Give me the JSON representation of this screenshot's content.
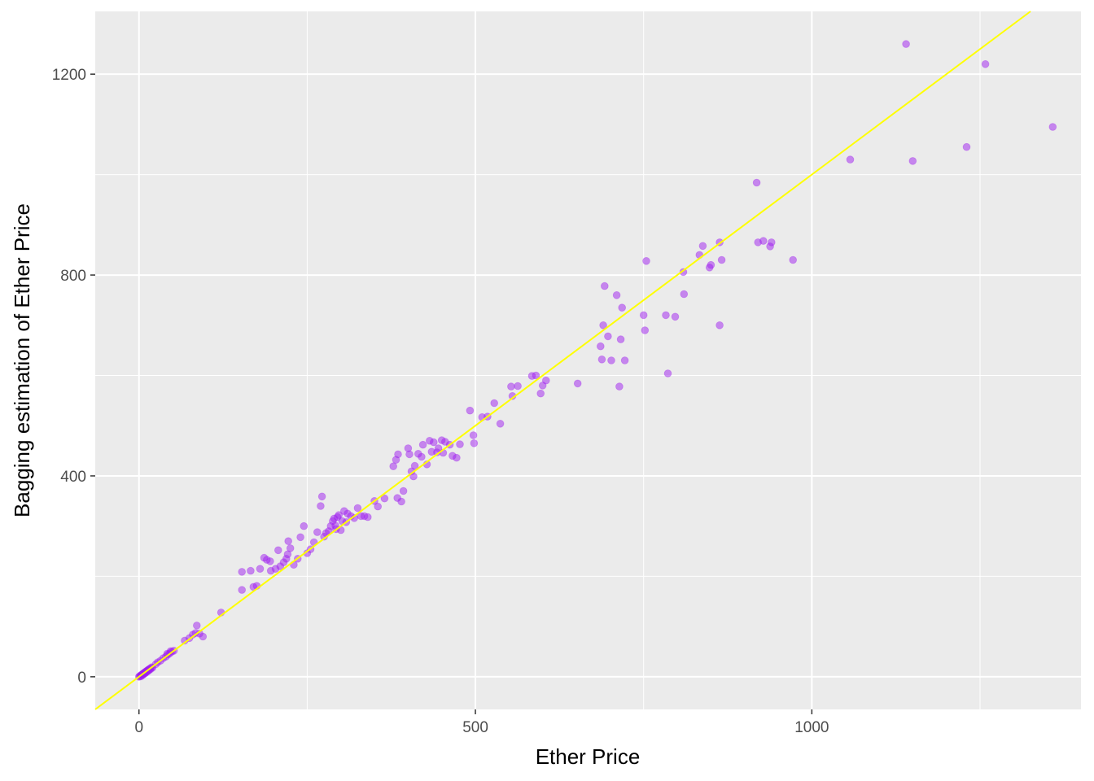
{
  "chart_data": {
    "type": "scatter",
    "title": "",
    "xlabel": "Ether Price",
    "ylabel": "Bagging estimation of Ether Price",
    "xlim": [
      -65,
      1400
    ],
    "ylim": [
      -65,
      1325
    ],
    "x_ticks": [
      0,
      500,
      1000
    ],
    "y_ticks": [
      0,
      400,
      800,
      1200
    ],
    "x_tick_labels": [
      "0",
      "500",
      "1000"
    ],
    "y_tick_labels": [
      "0",
      "400",
      "800",
      "1200"
    ],
    "grid": true,
    "legend": "none",
    "point_color": "#a020f0",
    "line_color": "#ffff00",
    "panel_color": "#ebebeb",
    "reference_line": {
      "slope": 1,
      "intercept": 0
    },
    "points": [
      [
        0,
        0
      ],
      [
        1,
        1
      ],
      [
        2,
        2
      ],
      [
        3,
        3
      ],
      [
        4,
        4
      ],
      [
        5,
        5
      ],
      [
        6,
        6
      ],
      [
        7,
        7
      ],
      [
        8,
        8
      ],
      [
        9,
        9
      ],
      [
        10,
        10
      ],
      [
        11,
        11
      ],
      [
        12,
        12
      ],
      [
        13,
        13
      ],
      [
        14,
        14
      ],
      [
        15,
        15
      ],
      [
        17,
        17
      ],
      [
        19,
        19
      ],
      [
        3,
        1
      ],
      [
        5,
        3
      ],
      [
        7,
        5
      ],
      [
        9,
        7
      ],
      [
        11,
        9
      ],
      [
        13,
        11
      ],
      [
        15,
        13
      ],
      [
        17,
        15
      ],
      [
        20,
        18
      ],
      [
        25,
        25
      ],
      [
        28,
        29
      ],
      [
        32,
        32
      ],
      [
        36,
        37
      ],
      [
        40,
        40
      ],
      [
        43,
        44
      ],
      [
        46,
        47
      ],
      [
        49,
        50
      ],
      [
        52,
        52
      ],
      [
        42,
        46
      ],
      [
        47,
        51
      ],
      [
        68,
        72
      ],
      [
        75,
        77
      ],
      [
        80,
        84
      ],
      [
        84,
        87
      ],
      [
        86,
        102
      ],
      [
        90,
        86
      ],
      [
        95,
        80
      ],
      [
        122,
        128
      ],
      [
        153,
        209
      ],
      [
        153,
        173
      ],
      [
        166,
        211
      ],
      [
        170,
        179
      ],
      [
        175,
        181
      ],
      [
        180,
        215
      ],
      [
        186,
        237
      ],
      [
        190,
        233
      ],
      [
        195,
        230
      ],
      [
        196,
        211
      ],
      [
        203,
        215
      ],
      [
        207,
        252
      ],
      [
        210,
        220
      ],
      [
        215,
        228
      ],
      [
        219,
        235
      ],
      [
        221,
        244
      ],
      [
        222,
        270
      ],
      [
        225,
        256
      ],
      [
        230,
        223
      ],
      [
        236,
        235
      ],
      [
        240,
        278
      ],
      [
        245,
        300
      ],
      [
        250,
        246
      ],
      [
        255,
        254
      ],
      [
        260,
        268
      ],
      [
        265,
        288
      ],
      [
        270,
        340
      ],
      [
        272,
        359
      ],
      [
        275,
        279
      ],
      [
        278,
        286
      ],
      [
        282,
        290
      ],
      [
        285,
        300
      ],
      [
        288,
        310
      ],
      [
        290,
        315
      ],
      [
        292,
        301
      ],
      [
        293,
        294
      ],
      [
        295,
        318
      ],
      [
        297,
        322
      ],
      [
        300,
        292
      ],
      [
        302,
        310
      ],
      [
        305,
        330
      ],
      [
        308,
        308
      ],
      [
        310,
        325
      ],
      [
        315,
        320
      ],
      [
        320,
        316
      ],
      [
        325,
        336
      ],
      [
        330,
        320
      ],
      [
        335,
        320
      ],
      [
        340,
        318
      ],
      [
        350,
        350
      ],
      [
        355,
        339
      ],
      [
        365,
        355
      ],
      [
        378,
        419
      ],
      [
        382,
        432
      ],
      [
        384,
        356
      ],
      [
        385,
        443
      ],
      [
        390,
        349
      ],
      [
        393,
        370
      ],
      [
        400,
        455
      ],
      [
        402,
        443
      ],
      [
        405,
        409
      ],
      [
        408,
        399
      ],
      [
        410,
        420
      ],
      [
        415,
        444
      ],
      [
        420,
        438
      ],
      [
        422,
        462
      ],
      [
        428,
        423
      ],
      [
        432,
        470
      ],
      [
        435,
        448
      ],
      [
        438,
        467
      ],
      [
        443,
        447
      ],
      [
        445,
        455
      ],
      [
        450,
        471
      ],
      [
        452,
        446
      ],
      [
        455,
        468
      ],
      [
        462,
        462
      ],
      [
        466,
        440
      ],
      [
        472,
        436
      ],
      [
        477,
        463
      ],
      [
        492,
        530
      ],
      [
        497,
        481
      ],
      [
        498,
        465
      ],
      [
        510,
        517
      ],
      [
        518,
        518
      ],
      [
        528,
        545
      ],
      [
        537,
        504
      ],
      [
        553,
        578
      ],
      [
        555,
        559
      ],
      [
        563,
        579
      ],
      [
        584,
        599
      ],
      [
        590,
        600
      ],
      [
        597,
        564
      ],
      [
        600,
        580
      ],
      [
        605,
        590
      ],
      [
        652,
        584
      ],
      [
        686,
        658
      ],
      [
        688,
        632
      ],
      [
        690,
        700
      ],
      [
        692,
        778
      ],
      [
        697,
        678
      ],
      [
        702,
        630
      ],
      [
        710,
        760
      ],
      [
        714,
        578
      ],
      [
        716,
        672
      ],
      [
        718,
        735
      ],
      [
        722,
        630
      ],
      [
        750,
        720
      ],
      [
        752,
        690
      ],
      [
        754,
        828
      ],
      [
        783,
        720
      ],
      [
        786,
        604
      ],
      [
        797,
        717
      ],
      [
        809,
        806
      ],
      [
        810,
        762
      ],
      [
        833,
        840
      ],
      [
        838,
        858
      ],
      [
        848,
        815
      ],
      [
        850,
        820
      ],
      [
        863,
        865
      ],
      [
        863,
        700
      ],
      [
        866,
        830
      ],
      [
        918,
        984
      ],
      [
        920,
        865
      ],
      [
        928,
        868
      ],
      [
        938,
        857
      ],
      [
        940,
        865
      ],
      [
        972,
        830
      ],
      [
        1057,
        1030
      ],
      [
        1140,
        1260
      ],
      [
        1150,
        1027
      ],
      [
        1230,
        1055
      ],
      [
        1258,
        1220
      ],
      [
        1358,
        1095
      ]
    ]
  }
}
